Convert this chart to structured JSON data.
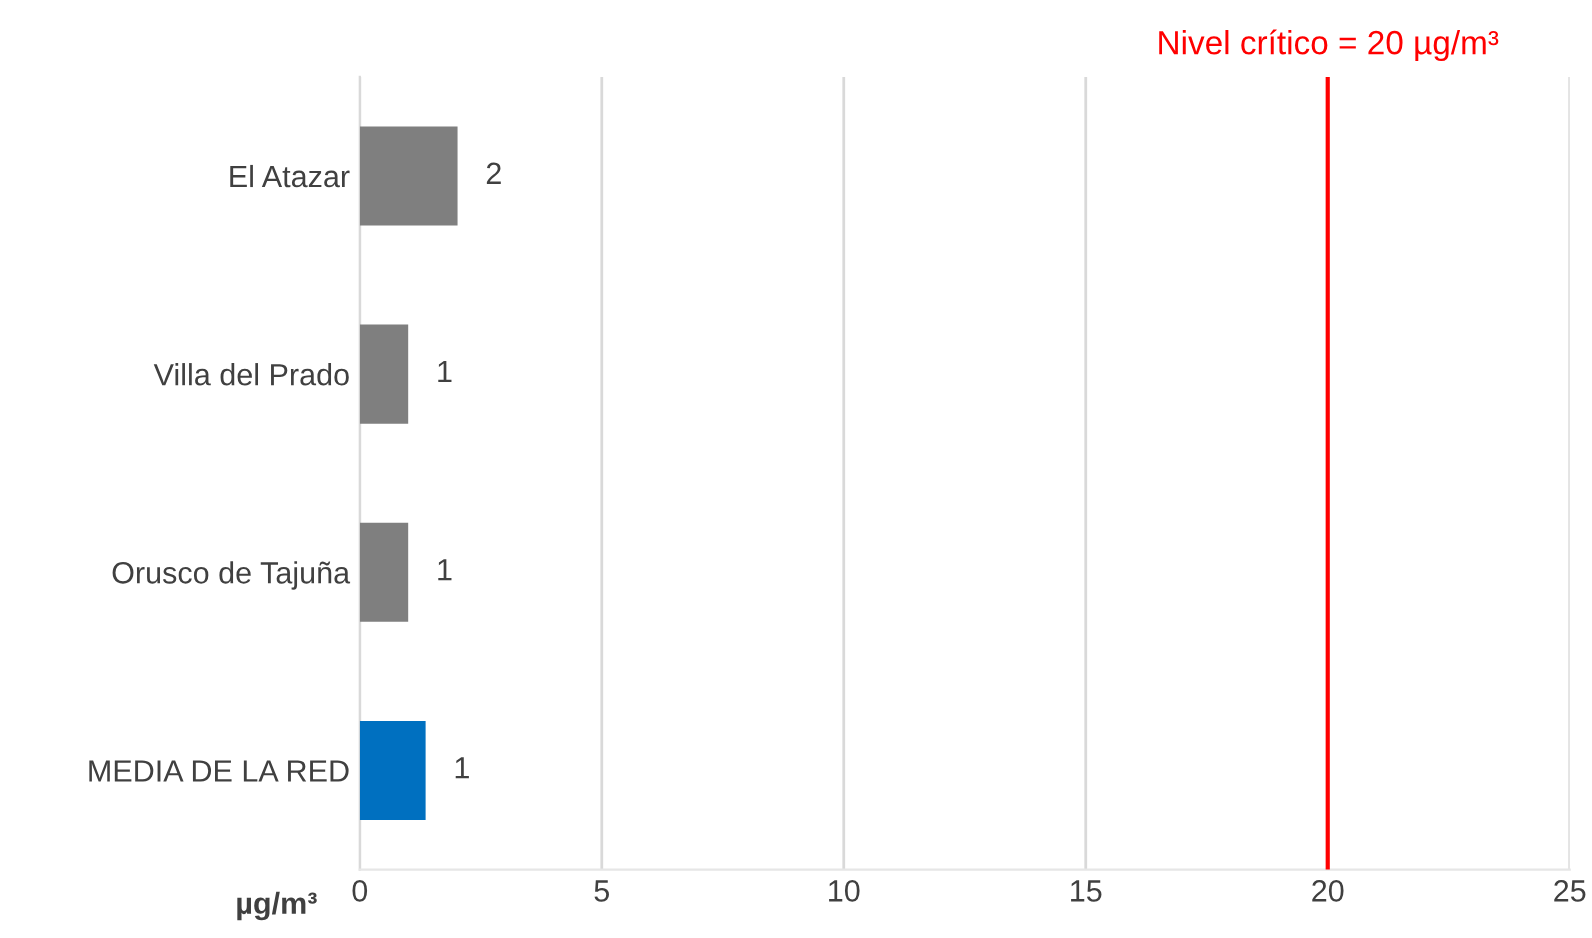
{
  "chart_data": {
    "type": "bar",
    "orientation": "horizontal",
    "xlabel": "µg/m³",
    "categories": [
      "El Atazar",
      "Villa del Prado",
      "Orusco de Tajuña",
      "MEDIA DE LA RED"
    ],
    "values": [
      2.02,
      1.0,
      1.0,
      1.36
    ],
    "colors": [
      "#7f7f7f",
      "#7f7f7f",
      "#7f7f7f",
      "#0070c0"
    ],
    "value_labels": [
      "2",
      "1",
      "1",
      "1"
    ],
    "xlim": [
      0,
      25
    ],
    "xticks": [
      0,
      5,
      10,
      15,
      20,
      25
    ],
    "grid": "x",
    "ref_lines": [
      {
        "axis": "x",
        "value": 20,
        "label": "Nivel crítico = 20 µg/m³",
        "color": "#ff0000"
      }
    ]
  }
}
